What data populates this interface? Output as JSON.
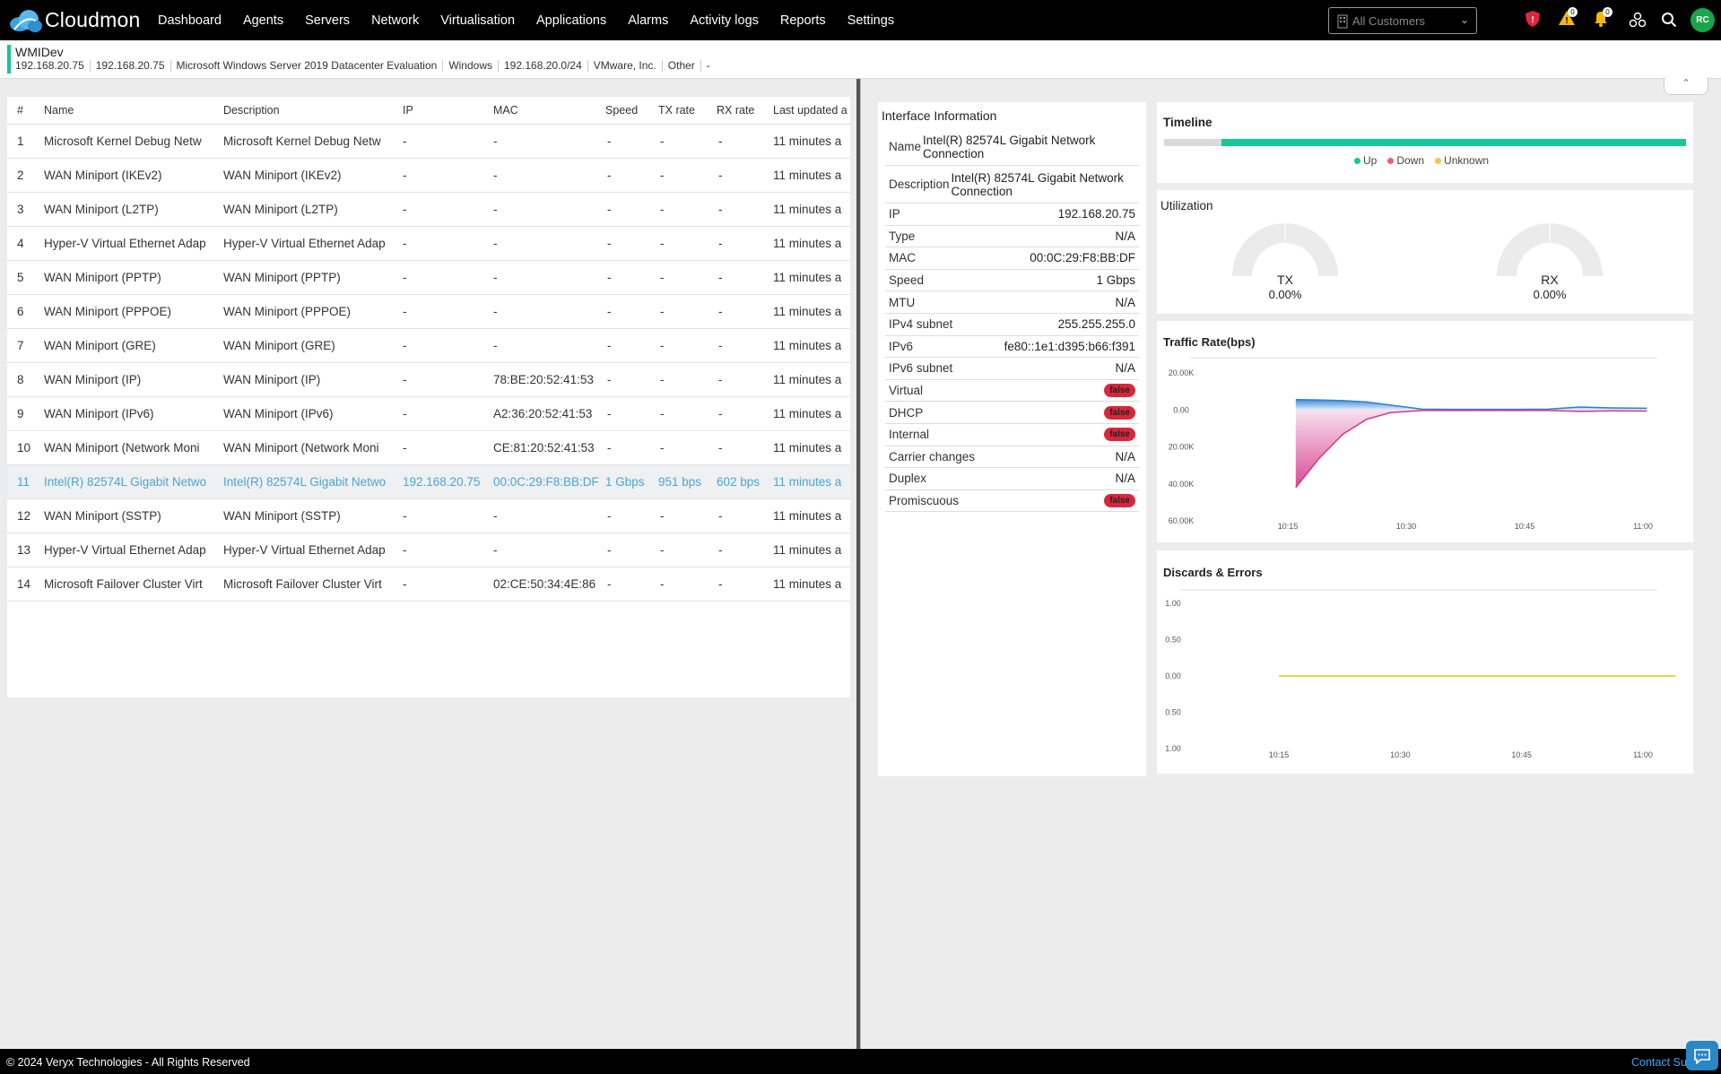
{
  "app": {
    "brand": "Cloudmon"
  },
  "nav": [
    "Dashboard",
    "Agents",
    "Servers",
    "Network",
    "Virtualisation",
    "Applications",
    "Alarms",
    "Activity logs",
    "Reports",
    "Settings"
  ],
  "topbar": {
    "customer_select": "All Customers",
    "alarm_warning_count": "0",
    "notification_count": "0",
    "avatar_initials": "RC"
  },
  "device": {
    "name": "WMIDev",
    "meta": [
      "192.168.20.75",
      "192.168.20.75",
      "Microsoft Windows Server 2019 Datacenter Evaluation",
      "Windows",
      "192.168.20.0/24",
      "VMware, Inc.",
      "Other",
      "-"
    ]
  },
  "table": {
    "headers": [
      "#",
      "Name",
      "Description",
      "IP",
      "MAC",
      "Speed",
      "TX rate",
      "RX rate",
      "Last updated a"
    ],
    "rows": [
      [
        "1",
        "Microsoft Kernel Debug Netw",
        "Microsoft Kernel Debug Netw",
        "-",
        "-",
        "-",
        "-",
        "-",
        "11 minutes a"
      ],
      [
        "2",
        "WAN Miniport (IKEv2)",
        "WAN Miniport (IKEv2)",
        "-",
        "-",
        "-",
        "-",
        "-",
        "11 minutes a"
      ],
      [
        "3",
        "WAN Miniport (L2TP)",
        "WAN Miniport (L2TP)",
        "-",
        "-",
        "-",
        "-",
        "-",
        "11 minutes a"
      ],
      [
        "4",
        "Hyper-V Virtual Ethernet Adap",
        "Hyper-V Virtual Ethernet Adap",
        "-",
        "-",
        "-",
        "-",
        "-",
        "11 minutes a"
      ],
      [
        "5",
        "WAN Miniport (PPTP)",
        "WAN Miniport (PPTP)",
        "-",
        "-",
        "-",
        "-",
        "-",
        "11 minutes a"
      ],
      [
        "6",
        "WAN Miniport (PPPOE)",
        "WAN Miniport (PPPOE)",
        "-",
        "-",
        "-",
        "-",
        "-",
        "11 minutes a"
      ],
      [
        "7",
        "WAN Miniport (GRE)",
        "WAN Miniport (GRE)",
        "-",
        "-",
        "-",
        "-",
        "-",
        "11 minutes a"
      ],
      [
        "8",
        "WAN Miniport (IP)",
        "WAN Miniport (IP)",
        "-",
        "78:BE:20:52:41:53",
        "-",
        "-",
        "-",
        "11 minutes a"
      ],
      [
        "9",
        "WAN Miniport (IPv6)",
        "WAN Miniport (IPv6)",
        "-",
        "A2:36:20:52:41:53",
        "-",
        "-",
        "-",
        "11 minutes a"
      ],
      [
        "10",
        "WAN Miniport (Network Moni",
        "WAN Miniport (Network Moni",
        "-",
        "CE:81:20:52:41:53",
        "-",
        "-",
        "-",
        "11 minutes a"
      ],
      [
        "11",
        "Intel(R) 82574L Gigabit Netwo",
        "Intel(R) 82574L Gigabit Netwo",
        "192.168.20.75",
        "00:0C:29:F8:BB:DF",
        "1 Gbps",
        "951 bps",
        "602 bps",
        "11 minutes a"
      ],
      [
        "12",
        "WAN Miniport (SSTP)",
        "WAN Miniport (SSTP)",
        "-",
        "-",
        "-",
        "-",
        "-",
        "11 minutes a"
      ],
      [
        "13",
        "Hyper-V Virtual Ethernet Adap",
        "Hyper-V Virtual Ethernet Adap",
        "-",
        "-",
        "-",
        "-",
        "-",
        "11 minutes a"
      ],
      [
        "14",
        "Microsoft Failover Cluster Virt",
        "Microsoft Failover Cluster Virt",
        "-",
        "02:CE:50:34:4E:86",
        "-",
        "-",
        "-",
        "11 minutes a"
      ]
    ],
    "selected_row": 11
  },
  "interface": {
    "title": "Interface Information",
    "rows": [
      {
        "k": "Name",
        "v": "Intel(R) 82574L Gigabit Network Connection",
        "tall": true
      },
      {
        "k": "Description",
        "v": "Intel(R) 82574L Gigabit Network Connection",
        "tall": true
      },
      {
        "k": "IP",
        "v": "192.168.20.75"
      },
      {
        "k": "Type",
        "v": "N/A"
      },
      {
        "k": "MAC",
        "v": "00:0C:29:F8:BB:DF"
      },
      {
        "k": "Speed",
        "v": "1 Gbps"
      },
      {
        "k": "MTU",
        "v": "N/A"
      },
      {
        "k": "IPv4 subnet",
        "v": "255.255.255.0"
      },
      {
        "k": "IPv6",
        "v": "fe80::1e1:d395:b66:f391"
      },
      {
        "k": "IPv6 subnet",
        "v": "N/A"
      },
      {
        "k": "Virtual",
        "v": "false",
        "pill": true
      },
      {
        "k": "DHCP",
        "v": "false",
        "pill": true
      },
      {
        "k": "Internal",
        "v": "false",
        "pill": true
      },
      {
        "k": "Carrier changes",
        "v": "N/A"
      },
      {
        "k": "Duplex",
        "v": "N/A"
      },
      {
        "k": "Promiscuous",
        "v": "false",
        "pill": true
      }
    ]
  },
  "timeline": {
    "title": "Timeline",
    "segments": [
      {
        "state": "Unknown-gray",
        "fraction": 0.11
      },
      {
        "state": "Up",
        "fraction": 0.89
      }
    ],
    "legend": [
      {
        "label": "Up",
        "color": "#16c79a"
      },
      {
        "label": "Down",
        "color": "#f25c6e"
      },
      {
        "label": "Unknown",
        "color": "#f5c542"
      }
    ]
  },
  "utilization": {
    "title": "Utilization",
    "gauges": [
      {
        "label": "TX",
        "value": "0.00%"
      },
      {
        "label": "RX",
        "value": "0.00%"
      }
    ]
  },
  "chart_data": [
    {
      "type": "area",
      "title": "Traffic Rate(bps)",
      "ylim": [
        -60000,
        20000
      ],
      "ytick_labels": [
        "20.00K",
        "0.00",
        "20.00K",
        "40.00K",
        "60.00K"
      ],
      "ytick_values": [
        20000,
        0,
        -20000,
        -40000,
        -60000
      ],
      "xtick_labels": [
        "10:15",
        "10:30",
        "10:45",
        "11:00"
      ],
      "xtick_minutes": [
        15,
        30,
        45,
        60
      ],
      "x_minutes": [
        16,
        19,
        22,
        25,
        28,
        32,
        36,
        40,
        44,
        48,
        52,
        56,
        60.5
      ],
      "series": [
        {
          "color": "#2a7fd4",
          "values": [
            5600,
            5400,
            5000,
            4300,
            2600,
            400,
            300,
            300,
            300,
            400,
            1600,
            1100,
            900
          ]
        },
        {
          "color": "#d2378c",
          "values": [
            -42000,
            -26000,
            -13000,
            -5000,
            -1500,
            -300,
            -300,
            -300,
            -300,
            -300,
            -800,
            -500,
            -600
          ]
        }
      ]
    },
    {
      "type": "line",
      "title": "Discards & Errors",
      "ylim": [
        -1,
        1
      ],
      "ytick_labels": [
        "1.00",
        "0.50",
        "0.00",
        "0.50",
        "1.00"
      ],
      "ytick_values": [
        1,
        0.5,
        0,
        -0.5,
        -1
      ],
      "xtick_labels": [
        "10:15",
        "10:30",
        "10:45",
        "11:00"
      ],
      "xtick_minutes": [
        15,
        30,
        45,
        60
      ],
      "x_minutes": [
        15,
        64
      ],
      "series": [
        {
          "color": "#d9d94a",
          "values": [
            0,
            0
          ]
        }
      ]
    }
  ],
  "footer": {
    "copyright": "© 2024 Veryx Technologies - All Rights Reserved",
    "contact": "Contact Sup"
  }
}
